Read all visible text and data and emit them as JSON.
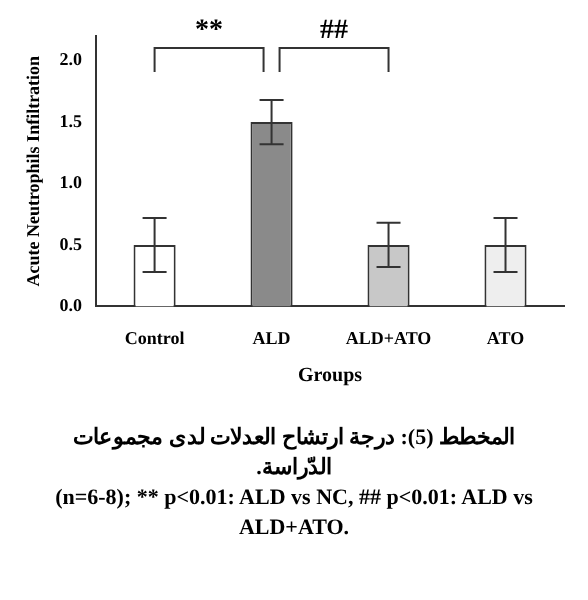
{
  "chart_data": {
    "type": "bar",
    "xlabel": "Groups",
    "ylabel": "Acute Neutrophils Infiltration",
    "categories": [
      "Control",
      "ALD",
      "ALD+ATO",
      "ATO"
    ],
    "values": [
      0.5,
      1.5,
      0.5,
      0.5
    ],
    "errors": [
      0.22,
      0.18,
      0.18,
      0.22
    ],
    "colors": [
      "#ffffff",
      "#8a8a8a",
      "#c8c8c8",
      "#eeeeee"
    ],
    "ylim": [
      0,
      2.2
    ],
    "yticks": [
      {
        "value": 0,
        "label": "0.0"
      },
      {
        "value": 0.5,
        "label": "0.5"
      },
      {
        "value": 1,
        "label": "1.0"
      },
      {
        "value": 1.5,
        "label": "1.5"
      },
      {
        "value": 2,
        "label": "2.0"
      }
    ],
    "grid": false,
    "legend": false,
    "annotations": [
      "**",
      "##",
      "المخطط (5): درجة ارتشاح العدلات لدى مجموعات الدّراسة.",
      "(n=6-8); ** p<0.01: ALD vs NC, ## p<0.01: ALD vs ALD+ATO."
    ]
  }
}
